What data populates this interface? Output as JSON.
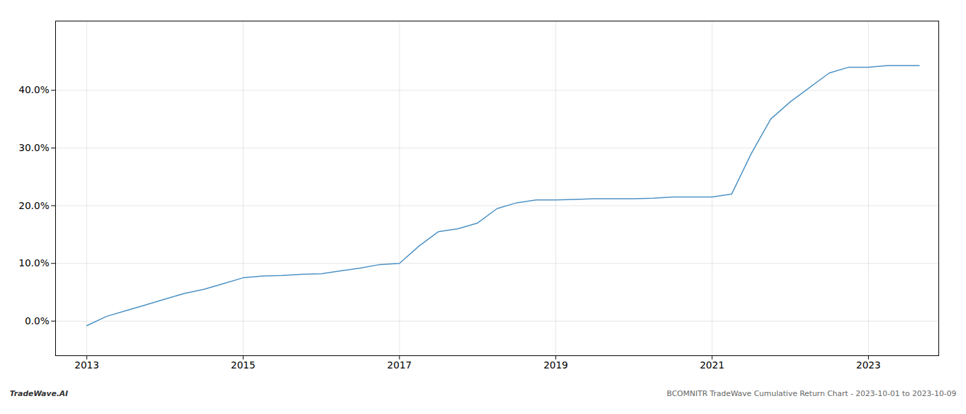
{
  "chart_data": {
    "type": "line",
    "title": "BCOMNITR TradeWave Cumulative Return Chart - 2023-10-01 to 2023-10-09",
    "annotations": [
      "TradeWave.AI"
    ],
    "color": "#4a90c4",
    "grid": true,
    "x": [
      2013.0,
      2013.25,
      2013.5,
      2013.75,
      2014.0,
      2014.25,
      2014.5,
      2014.75,
      2015.0,
      2015.25,
      2015.5,
      2015.75,
      2016.0,
      2016.25,
      2016.5,
      2016.75,
      2017.0,
      2017.25,
      2017.5,
      2017.75,
      2018.0,
      2018.25,
      2018.5,
      2018.75,
      2019.0,
      2019.25,
      2019.5,
      2019.75,
      2020.0,
      2020.25,
      2020.5,
      2020.75,
      2021.0,
      2021.25,
      2021.5,
      2021.75,
      2022.0,
      2022.25,
      2022.5,
      2022.75,
      2023.0,
      2023.25,
      2023.65
    ],
    "values": [
      -0.008,
      0.008,
      0.018,
      0.028,
      0.038,
      0.048,
      0.055,
      0.065,
      0.075,
      0.078,
      0.079,
      0.081,
      0.082,
      0.087,
      0.092,
      0.098,
      0.1,
      0.13,
      0.155,
      0.16,
      0.17,
      0.195,
      0.205,
      0.21,
      0.21,
      0.211,
      0.212,
      0.212,
      0.212,
      0.213,
      0.215,
      0.215,
      0.215,
      0.22,
      0.29,
      0.35,
      0.38,
      0.405,
      0.43,
      0.44,
      0.44,
      0.443,
      0.443
    ],
    "xlim": [
      2012.6,
      2023.9
    ],
    "ylim": [
      -0.06,
      0.52
    ],
    "xticks": [
      2013,
      2015,
      2017,
      2019,
      2021,
      2023
    ],
    "yticks": [
      {
        "value": 0.0,
        "label": "0.0%"
      },
      {
        "value": 0.1,
        "label": "10.0%"
      },
      {
        "value": 0.2,
        "label": "20.0%"
      },
      {
        "value": 0.3,
        "label": "30.0%"
      },
      {
        "value": 0.4,
        "label": "40.0%"
      }
    ]
  }
}
